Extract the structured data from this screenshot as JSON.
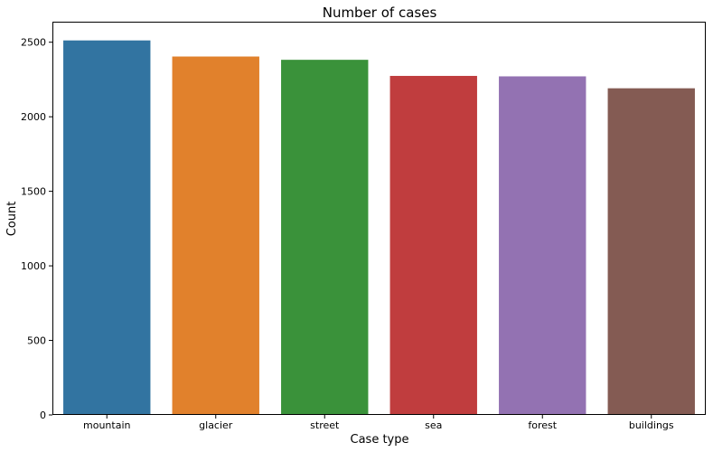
{
  "chart_data": {
    "type": "bar",
    "title": "Number of cases",
    "xlabel": "Case type",
    "ylabel": "Count",
    "categories": [
      "mountain",
      "glacier",
      "street",
      "sea",
      "forest",
      "buildings"
    ],
    "values": [
      2512,
      2404,
      2382,
      2274,
      2271,
      2191
    ],
    "colors": [
      "#3274a1",
      "#e1812c",
      "#3a923a",
      "#c03d3e",
      "#9372b2",
      "#845b53"
    ],
    "ylim": [
      0,
      2637.6
    ],
    "yticks": [
      0,
      500,
      1000,
      1500,
      2000,
      2500
    ],
    "grid": false,
    "legend": "none"
  }
}
